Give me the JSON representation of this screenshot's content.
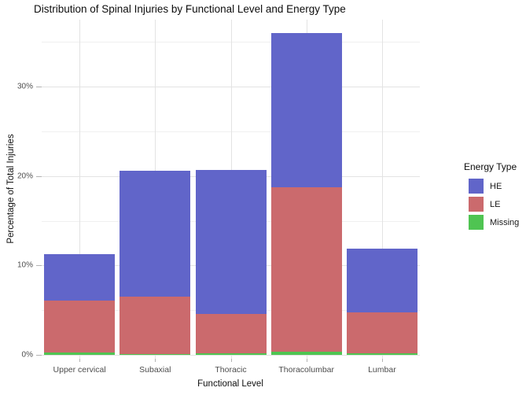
{
  "title": "Distribution of Spinal Injuries by Functional Level and Energy Type",
  "chart_data": {
    "type": "bar",
    "stacked": true,
    "title": "Distribution of Spinal Injuries by Functional Level and Energy Type",
    "xlabel": "Functional Level",
    "ylabel": "Percentage of Total Injuries",
    "categories": [
      "Upper cervical",
      "Subaxial",
      "Thoracic",
      "Thoracolumbar",
      "Lumbar"
    ],
    "series": [
      {
        "name": "Missing",
        "color": "#4fc452",
        "values": [
          0.3,
          0.1,
          0.15,
          0.35,
          0.15
        ]
      },
      {
        "name": "LE",
        "color": "#cb6a6d",
        "values": [
          5.8,
          6.4,
          4.45,
          18.4,
          4.6
        ]
      },
      {
        "name": "HE",
        "color": "#6165c9",
        "values": [
          5.2,
          14.1,
          16.05,
          17.25,
          7.1
        ]
      }
    ],
    "stack_order": "bottom-to-top",
    "bar_totals_pct": [
      11.3,
      20.6,
      20.65,
      36.0,
      11.85
    ],
    "ylim": [
      0,
      37.5
    ],
    "y_tick_values": [
      0,
      10,
      20,
      30
    ],
    "y_tick_labels": [
      "0%",
      "10%",
      "20%",
      "30%"
    ],
    "y_minor_values": [
      5,
      15,
      25,
      35
    ],
    "grid": "major and minor horizontal, major vertical at category centers",
    "legend": {
      "title": "Energy Type",
      "position": "right",
      "entries": [
        {
          "label": "HE",
          "color": "#6165c9"
        },
        {
          "label": "LE",
          "color": "#cb6a6d"
        },
        {
          "label": "Missing",
          "color": "#4fc452"
        }
      ]
    },
    "colors": {
      "HE": "#6165c9",
      "LE": "#cb6a6d",
      "Missing": "#4fc452",
      "gridline_major": "#e3e3e3",
      "gridline_minor": "#f0f0f0",
      "tick_text": "#4d4d4d"
    }
  }
}
